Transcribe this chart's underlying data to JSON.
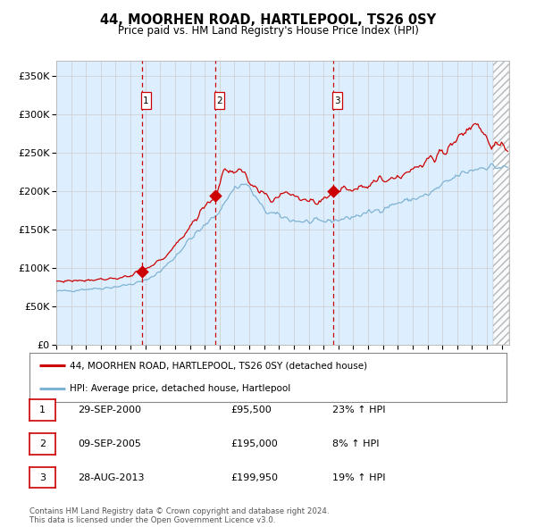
{
  "title": "44, MOORHEN ROAD, HARTLEPOOL, TS26 0SY",
  "subtitle": "Price paid vs. HM Land Registry's House Price Index (HPI)",
  "ylabel_ticks": [
    "£0",
    "£50K",
    "£100K",
    "£150K",
    "£200K",
    "£250K",
    "£300K",
    "£350K"
  ],
  "ytick_vals": [
    0,
    50000,
    100000,
    150000,
    200000,
    250000,
    300000,
    350000
  ],
  "ylim": [
    0,
    370000
  ],
  "sale_dates_num": [
    2000.75,
    2005.69,
    2013.66
  ],
  "sale_prices": [
    95500,
    195000,
    199950
  ],
  "sale_labels": [
    "1",
    "2",
    "3"
  ],
  "legend_red": "44, MOORHEN ROAD, HARTLEPOOL, TS26 0SY (detached house)",
  "legend_blue": "HPI: Average price, detached house, Hartlepool",
  "table_rows": [
    [
      "1",
      "29-SEP-2000",
      "£95,500",
      "23% ↑ HPI"
    ],
    [
      "2",
      "09-SEP-2005",
      "£195,000",
      "8% ↑ HPI"
    ],
    [
      "3",
      "28-AUG-2013",
      "£199,950",
      "19% ↑ HPI"
    ]
  ],
  "footer": "Contains HM Land Registry data © Crown copyright and database right 2024.\nThis data is licensed under the Open Government Licence v3.0.",
  "red_color": "#cc0000",
  "blue_color": "#7fb3d3",
  "bg_color": "#ddeeff",
  "hatch_color": "#aabbcc",
  "grid_color": "#cccccc",
  "xmin": 1995.0,
  "xmax": 2025.5,
  "hatch_start": 2024.4
}
